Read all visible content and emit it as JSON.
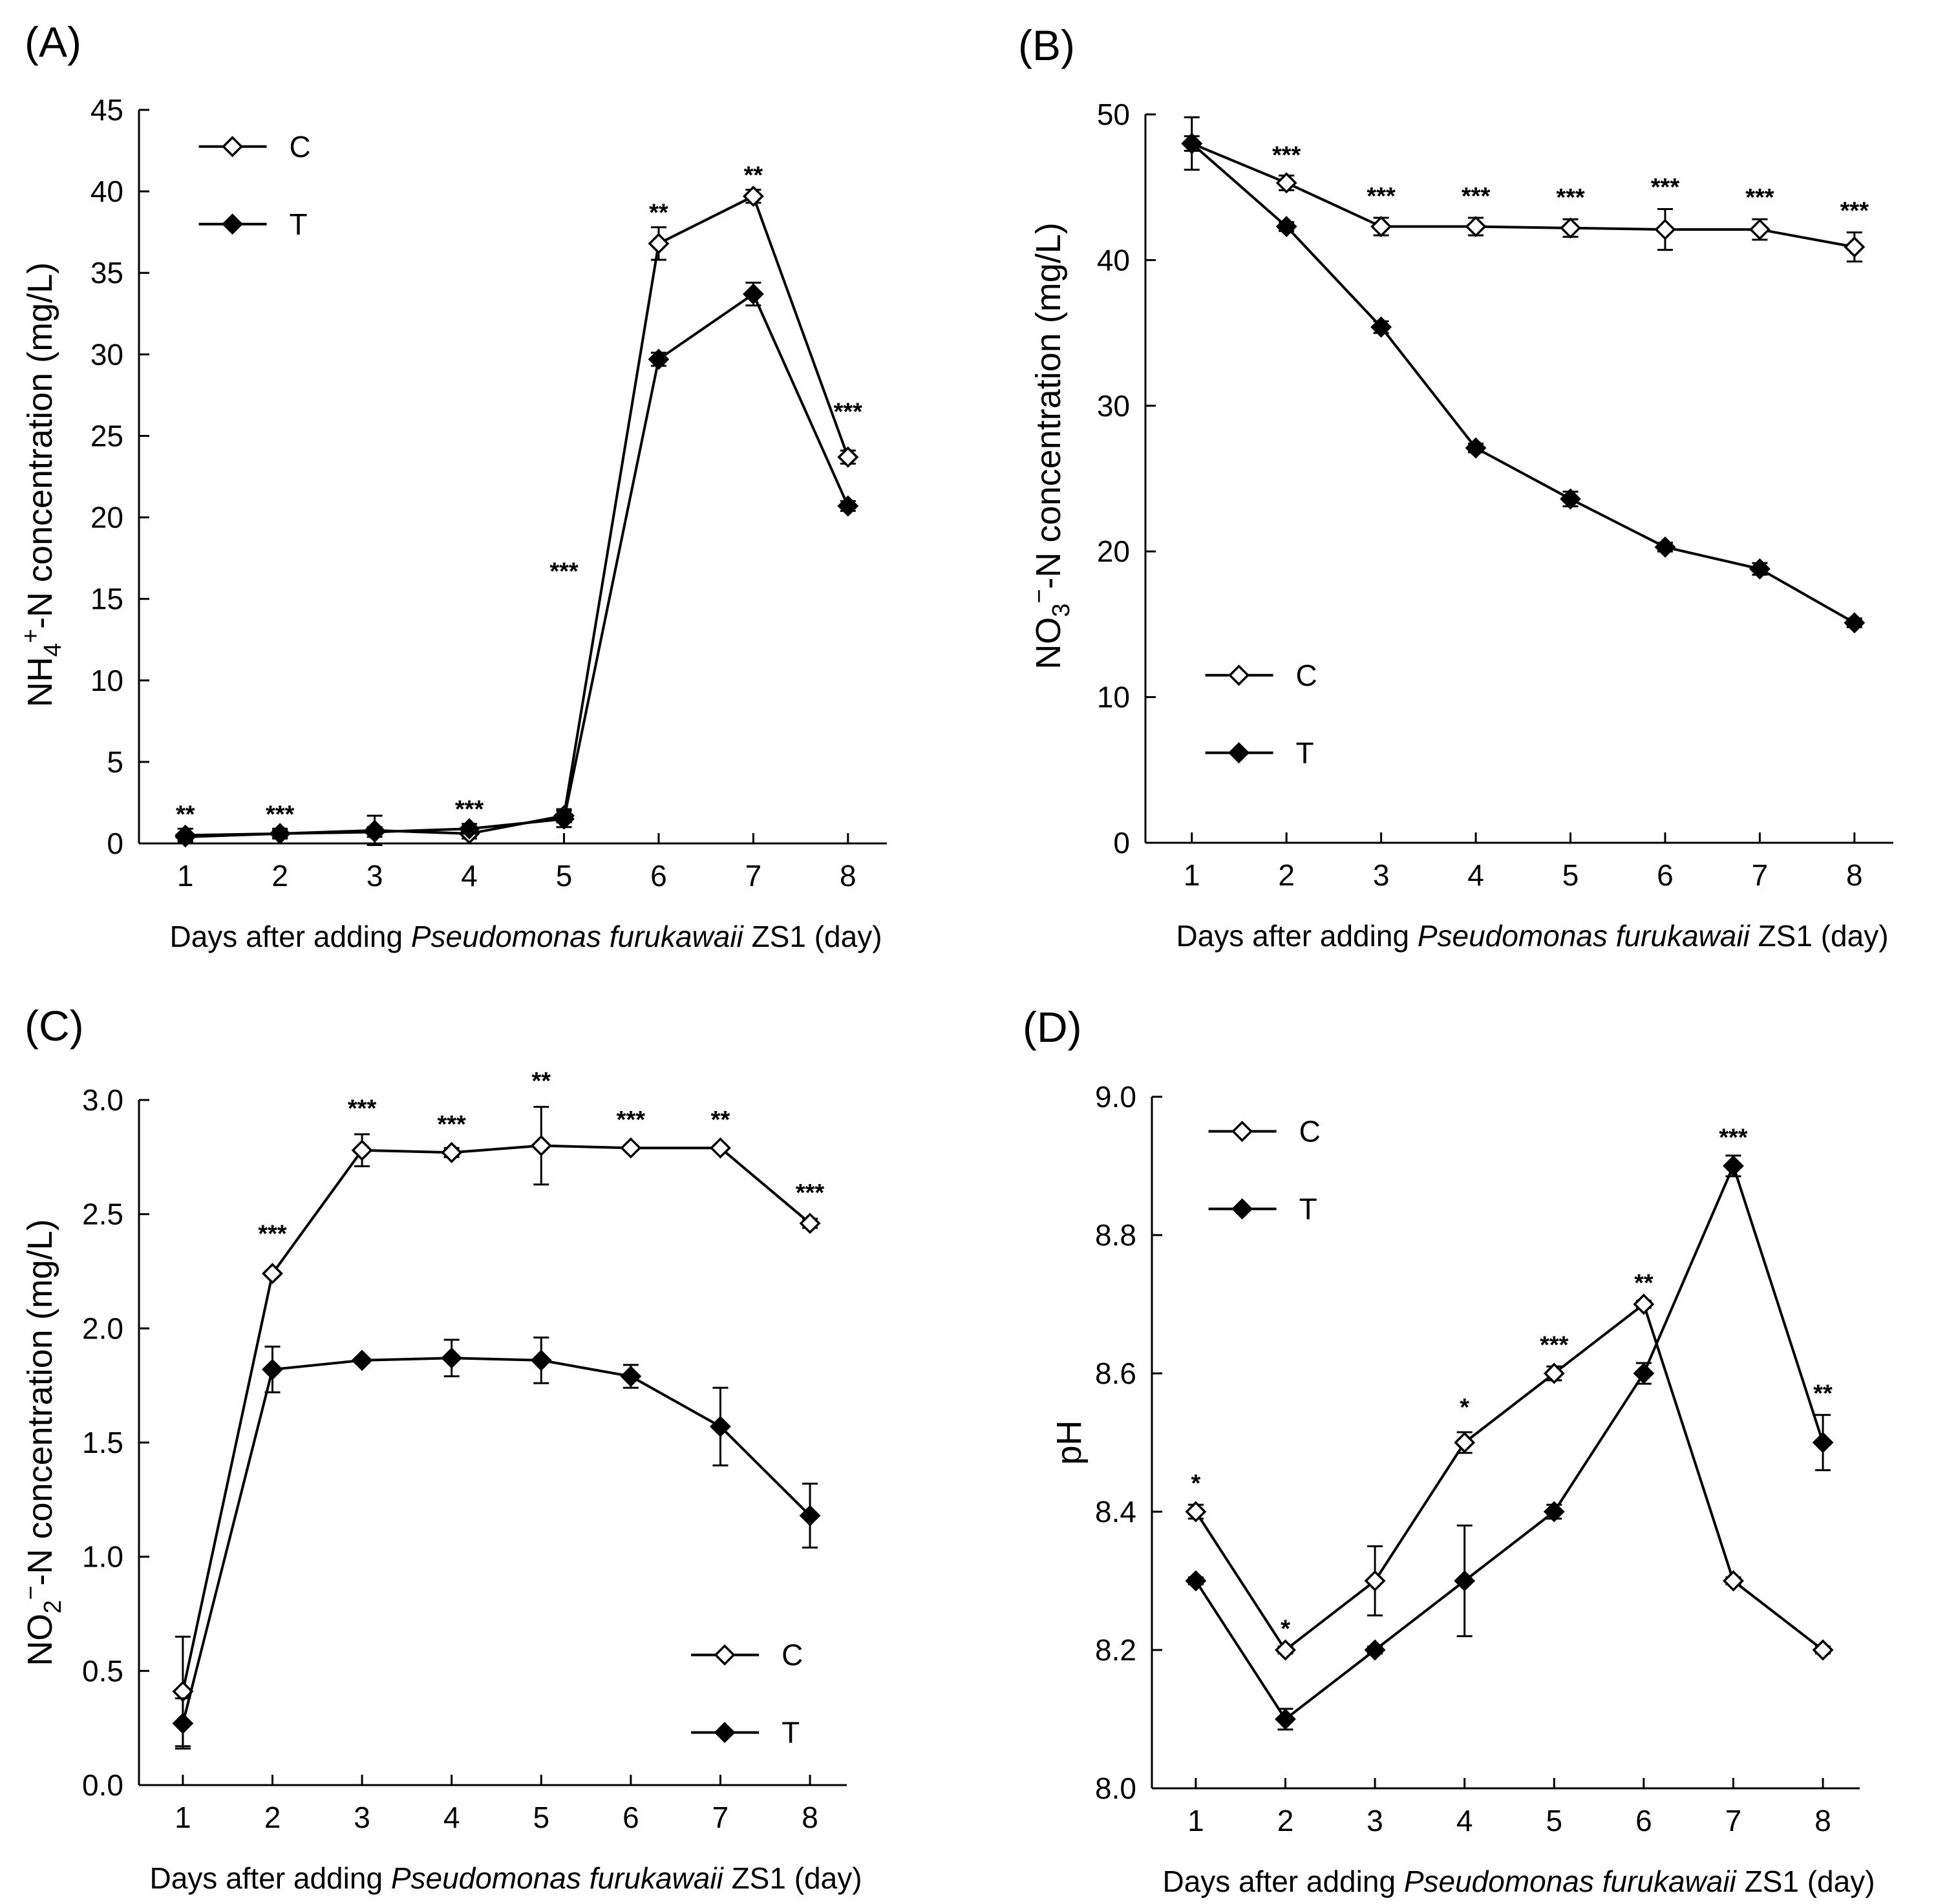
{
  "chart_data": [
    {
      "type": "line",
      "panel_label": "(A)",
      "xlabel": {
        "prefix": "Days after adding ",
        "italic": [
          "Pseudomonas",
          "furukawaii"
        ],
        "suffix": "ZS1 (day)"
      },
      "ylabel": {
        "main": "NH",
        "sub": "4",
        "sup": "+",
        "rest": "-N concentration (mg/L)"
      },
      "x": [
        1,
        2,
        3,
        4,
        5,
        6,
        7,
        8
      ],
      "xticks": [
        "1",
        "2",
        "3",
        "4",
        "5",
        "6",
        "7",
        "8"
      ],
      "ylim": [
        0,
        45
      ],
      "yticks": [
        "0",
        "5",
        "10",
        "15",
        "20",
        "25",
        "30",
        "35",
        "40",
        "45"
      ],
      "legend": {
        "position": "top-left",
        "entries": [
          "C",
          "T"
        ]
      },
      "series": [
        {
          "name": "C",
          "marker": "open-diamond",
          "values": [
            0.5,
            0.6,
            0.8,
            0.6,
            1.7,
            36.8,
            39.7,
            23.7
          ],
          "errors": [
            0.4,
            0.3,
            0.9,
            0.3,
            0.4,
            1.0,
            0.4,
            0.4
          ]
        },
        {
          "name": "T",
          "marker": "filled-diamond",
          "values": [
            0.4,
            0.6,
            0.7,
            0.9,
            1.5,
            29.7,
            33.7,
            20.7
          ],
          "errors": [
            0.2,
            0.2,
            0.3,
            0.3,
            0.5,
            0.4,
            0.7,
            0.3
          ]
        }
      ],
      "annotations": [
        {
          "x": 1,
          "y": 0.9,
          "text": "**"
        },
        {
          "x": 2,
          "y": 0.9,
          "text": "***"
        },
        {
          "x": 4,
          "y": 1.2,
          "text": "***"
        },
        {
          "x": 5,
          "y": 15.8,
          "text": "***"
        },
        {
          "x": 6,
          "y": 37.8,
          "text": "**"
        },
        {
          "x": 7,
          "y": 40.1,
          "text": "**"
        },
        {
          "x": 8,
          "y": 25.6,
          "text": "***"
        }
      ]
    },
    {
      "type": "line",
      "panel_label": "(B)",
      "xlabel": {
        "prefix": "Days after adding ",
        "italic": [
          "Pseudomonas",
          "furukawaii"
        ],
        "suffix": "ZS1 (day)"
      },
      "ylabel": {
        "main": "NO",
        "sub": "3",
        "sup": "−",
        "rest": "-N concentration (mg/L)"
      },
      "x": [
        1,
        2,
        3,
        4,
        5,
        6,
        7,
        8
      ],
      "xticks": [
        "1",
        "2",
        "3",
        "4",
        "5",
        "6",
        "7",
        "8"
      ],
      "ylim": [
        0,
        50
      ],
      "yticks": [
        "0",
        "10",
        "20",
        "30",
        "40",
        "50"
      ],
      "legend": {
        "position": "bottom-left",
        "entries": [
          "C",
          "T"
        ]
      },
      "series": [
        {
          "name": "C",
          "marker": "open-diamond",
          "values": [
            48.0,
            45.3,
            42.3,
            42.3,
            42.2,
            42.1,
            42.1,
            40.9
          ],
          "errors": [
            1.8,
            0.5,
            0.6,
            0.6,
            0.6,
            1.4,
            0.7,
            1.0
          ]
        },
        {
          "name": "T",
          "marker": "filled-diamond",
          "values": [
            48.0,
            42.3,
            35.4,
            27.1,
            23.6,
            20.3,
            18.8,
            15.1
          ],
          "errors": [
            0.5,
            0.3,
            0.4,
            0.3,
            0.5,
            0.3,
            0.4,
            0.3
          ]
        }
      ],
      "annotations": [
        {
          "x": 2,
          "y": 46.2,
          "text": "***"
        },
        {
          "x": 3,
          "y": 43.4,
          "text": "***"
        },
        {
          "x": 4,
          "y": 43.4,
          "text": "***"
        },
        {
          "x": 5,
          "y": 43.3,
          "text": "***"
        },
        {
          "x": 6,
          "y": 44.0,
          "text": "***"
        },
        {
          "x": 7,
          "y": 43.3,
          "text": "***"
        },
        {
          "x": 8,
          "y": 42.4,
          "text": "***"
        }
      ]
    },
    {
      "type": "line",
      "panel_label": "(C)",
      "xlabel": {
        "prefix": "Days after adding ",
        "italic": [
          "Pseudomonas",
          "furukawaii"
        ],
        "suffix": "ZS1 (day)"
      },
      "ylabel": {
        "main": "NO",
        "sub": "2",
        "sup": "−",
        "rest": "-N concentration (mg/L)"
      },
      "x": [
        1,
        2,
        3,
        4,
        5,
        6,
        7,
        8
      ],
      "xticks": [
        "1",
        "2",
        "3",
        "4",
        "5",
        "6",
        "7",
        "8"
      ],
      "ylim": [
        0,
        3
      ],
      "yticks": [
        "0.0",
        "0.5",
        "1.0",
        "1.5",
        "2.0",
        "2.5",
        "3.0"
      ],
      "legend": {
        "position": "bottom-right",
        "entries": [
          "C",
          "T"
        ]
      },
      "series": [
        {
          "name": "C",
          "marker": "open-diamond",
          "values": [
            0.41,
            2.24,
            2.78,
            2.77,
            2.8,
            2.79,
            2.79,
            2.46
          ],
          "errors": [
            0.24,
            0.01,
            0.07,
            0.02,
            0.17,
            0.01,
            0.01,
            0.02
          ]
        },
        {
          "name": "T",
          "marker": "filled-diamond",
          "values": [
            0.27,
            1.82,
            1.86,
            1.87,
            1.86,
            1.79,
            1.57,
            1.18
          ],
          "errors": [
            0.11,
            0.1,
            0.01,
            0.08,
            0.1,
            0.05,
            0.17,
            0.14
          ]
        }
      ],
      "annotations": [
        {
          "x": 2,
          "y": 2.35,
          "text": "***"
        },
        {
          "x": 3,
          "y": 2.9,
          "text": "***"
        },
        {
          "x": 4,
          "y": 2.83,
          "text": "***"
        },
        {
          "x": 5,
          "y": 3.02,
          "text": "**"
        },
        {
          "x": 6,
          "y": 2.85,
          "text": "***"
        },
        {
          "x": 7,
          "y": 2.85,
          "text": "**"
        },
        {
          "x": 8,
          "y": 2.53,
          "text": "***"
        }
      ]
    },
    {
      "type": "line",
      "panel_label": "(D)",
      "xlabel": {
        "prefix": "Days after adding ",
        "italic": [
          "Pseudomonas",
          "furukawaii"
        ],
        "suffix": "ZS1 (day)"
      },
      "ylabel": {
        "main": "pH",
        "sub": "",
        "sup": "",
        "rest": ""
      },
      "x": [
        1,
        2,
        3,
        4,
        5,
        6,
        7,
        8
      ],
      "xticks": [
        "1",
        "2",
        "3",
        "4",
        "5",
        "6",
        "7",
        "8"
      ],
      "ylim": [
        8.0,
        9.0
      ],
      "yticks": [
        "8.0",
        "8.2",
        "8.4",
        "8.6",
        "8.8",
        "9.0"
      ],
      "legend": {
        "position": "top-left",
        "entries": [
          "C",
          "T"
        ]
      },
      "series": [
        {
          "name": "C",
          "marker": "open-diamond",
          "values": [
            8.4,
            8.2,
            8.3,
            8.5,
            8.6,
            8.7,
            8.3,
            8.2
          ],
          "errors": [
            0.01,
            0.005,
            0.05,
            0.015,
            0.01,
            0.005,
            0.005,
            0.005
          ]
        },
        {
          "name": "T",
          "marker": "filled-diamond",
          "values": [
            8.3,
            8.1,
            8.2,
            8.3,
            8.4,
            8.6,
            8.9,
            8.5
          ],
          "errors": [
            0.005,
            0.015,
            0.005,
            0.08,
            0.01,
            0.015,
            0.015,
            0.04
          ]
        }
      ],
      "annotations": [
        {
          "x": 1,
          "y": 8.42,
          "text": "*"
        },
        {
          "x": 2,
          "y": 8.21,
          "text": "*"
        },
        {
          "x": 4,
          "y": 8.53,
          "text": "*"
        },
        {
          "x": 5,
          "y": 8.62,
          "text": "***"
        },
        {
          "x": 6,
          "y": 8.71,
          "text": "**"
        },
        {
          "x": 7,
          "y": 8.92,
          "text": "***"
        },
        {
          "x": 8,
          "y": 8.55,
          "text": "**"
        }
      ]
    }
  ]
}
